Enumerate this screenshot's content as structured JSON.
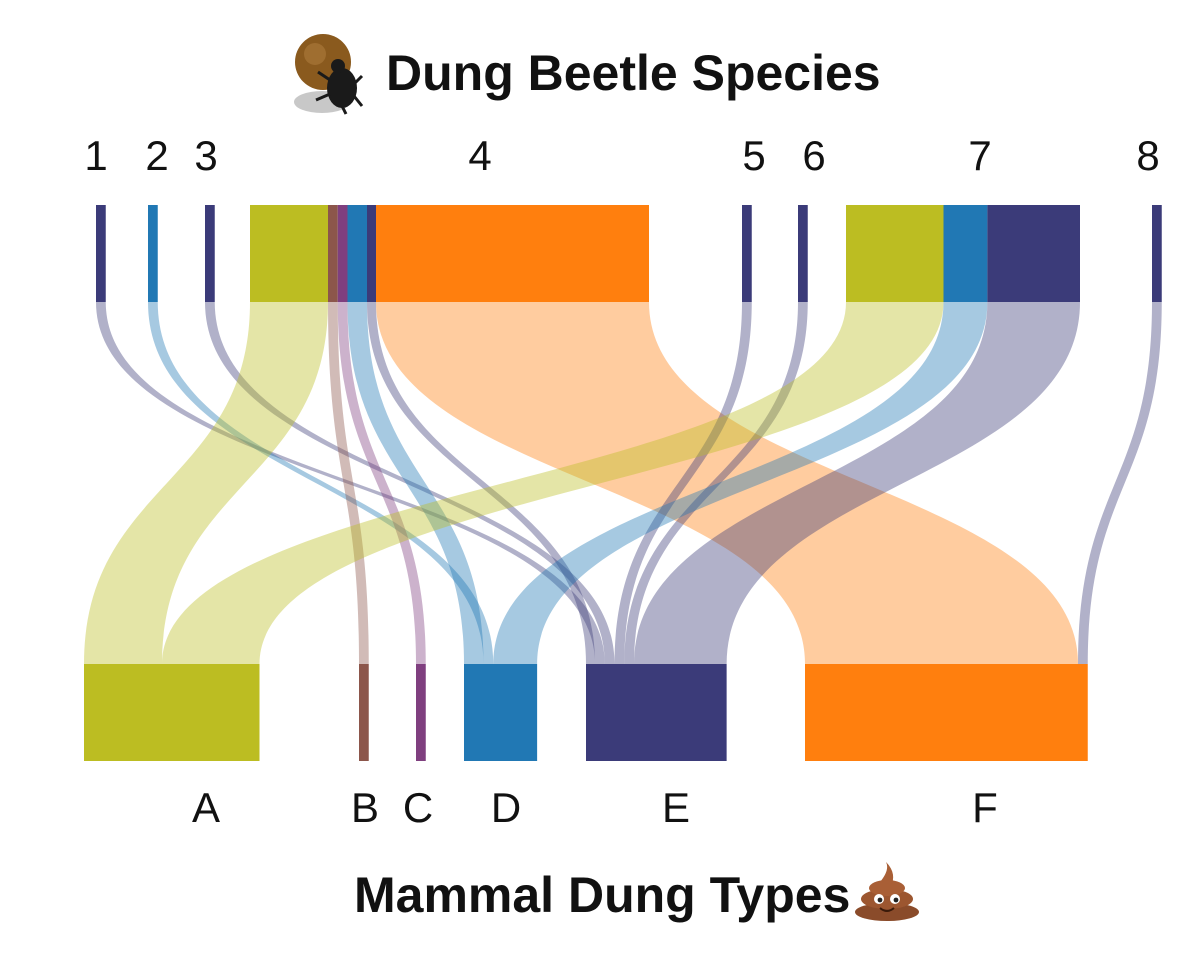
{
  "chart_data": {
    "type": "sankey",
    "title": "Dung Beetle Species",
    "bottom_title": "Mammal Dung Types",
    "icons": {
      "title_icon": "dung-beetle-icon",
      "bottom_icon": "poop-emoji-icon"
    },
    "colors": {
      "navy": "#3b3b79",
      "blue": "#2178b4",
      "olive": "#bcbd22",
      "orange": "#ff7f0e",
      "brown": "#8c564b",
      "purple": "#7f3f7f"
    },
    "sources": [
      {
        "id": "1",
        "label": "1"
      },
      {
        "id": "2",
        "label": "2"
      },
      {
        "id": "3",
        "label": "3"
      },
      {
        "id": "4",
        "label": "4"
      },
      {
        "id": "5",
        "label": "5"
      },
      {
        "id": "6",
        "label": "6"
      },
      {
        "id": "7",
        "label": "7"
      },
      {
        "id": "8",
        "label": "8"
      }
    ],
    "targets": [
      {
        "id": "A",
        "label": "A",
        "color": "#bcbd22"
      },
      {
        "id": "B",
        "label": "B",
        "color": "#8c564b"
      },
      {
        "id": "C",
        "label": "C",
        "color": "#7f3f7f"
      },
      {
        "id": "D",
        "label": "D",
        "color": "#2178b4"
      },
      {
        "id": "E",
        "label": "E",
        "color": "#3b3b79"
      },
      {
        "id": "F",
        "label": "F",
        "color": "#ff7f0e"
      }
    ],
    "links": [
      {
        "source": "1",
        "target": "E",
        "value": 1,
        "color": "#3b3b79"
      },
      {
        "source": "2",
        "target": "D",
        "value": 1,
        "color": "#2178b4"
      },
      {
        "source": "3",
        "target": "E",
        "value": 1,
        "color": "#3b3b79"
      },
      {
        "source": "4",
        "target": "A",
        "value": 8,
        "color": "#bcbd22"
      },
      {
        "source": "4",
        "target": "B",
        "value": 1,
        "color": "#8c564b"
      },
      {
        "source": "4",
        "target": "C",
        "value": 1,
        "color": "#7f3f7f"
      },
      {
        "source": "4",
        "target": "D",
        "value": 2,
        "color": "#2178b4"
      },
      {
        "source": "4",
        "target": "E",
        "value": 0.5,
        "color": "#3b3b79"
      },
      {
        "source": "4",
        "target": "F",
        "value": 28,
        "color": "#ff7f0e"
      },
      {
        "source": "5",
        "target": "E",
        "value": 1,
        "color": "#3b3b79"
      },
      {
        "source": "6",
        "target": "E",
        "value": 1,
        "color": "#3b3b79"
      },
      {
        "source": "7",
        "target": "A",
        "value": 10,
        "color": "#bcbd22"
      },
      {
        "source": "7",
        "target": "D",
        "value": 4.5,
        "color": "#2178b4"
      },
      {
        "source": "7",
        "target": "E",
        "value": 9.5,
        "color": "#3b3b79"
      },
      {
        "source": "8",
        "target": "F",
        "value": 1,
        "color": "#3b3b79"
      }
    ]
  }
}
